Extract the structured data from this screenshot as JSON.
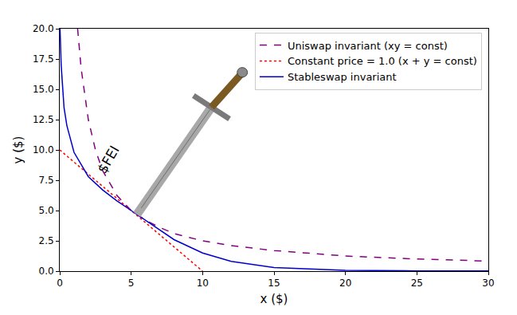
{
  "chart_data": {
    "type": "line",
    "x_label": "x ($)",
    "y_label": "y ($)",
    "xlim": [
      0,
      30
    ],
    "ylim": [
      0,
      20
    ],
    "xticks": [
      0,
      5,
      10,
      15,
      20,
      25,
      30
    ],
    "yticks": [
      {
        "value": 0,
        "label": "0.0"
      },
      {
        "value": 2.5,
        "label": "2.5"
      },
      {
        "value": 5,
        "label": "5.0"
      },
      {
        "value": 7.5,
        "label": "7.5"
      },
      {
        "value": 10,
        "label": "10.0"
      },
      {
        "value": 12.5,
        "label": "12.5"
      },
      {
        "value": 15,
        "label": "15.0"
      },
      {
        "value": 17.5,
        "label": "17.5"
      },
      {
        "value": 20,
        "label": "20.0"
      }
    ],
    "grid": false,
    "legend": "upper right",
    "series": [
      {
        "name": "Uniswap invariant (xy = const)",
        "color": "#800080",
        "line_style": "dashed",
        "x": [
          1.25,
          1.5,
          2,
          2.5,
          3,
          4,
          5,
          6,
          7,
          8,
          10,
          12,
          15,
          20,
          25,
          30
        ],
        "values": [
          20,
          16.7,
          12.5,
          10,
          8.3,
          6.25,
          5,
          4.2,
          3.6,
          3.1,
          2.5,
          2.1,
          1.7,
          1.25,
          1.0,
          0.83
        ]
      },
      {
        "name": "Constant price = 1.0 (x + y = const)",
        "color": "#ff0000",
        "line_style": "dotted",
        "x": [
          0,
          10
        ],
        "values": [
          10,
          0
        ]
      },
      {
        "name": "Stableswap invariant",
        "color": "#0000cd",
        "line_style": "solid",
        "x": [
          0.02,
          0.1,
          0.3,
          0.5,
          1,
          2,
          3,
          4,
          5,
          6,
          7,
          8,
          10,
          12,
          15,
          20,
          25,
          30
        ],
        "values": [
          20,
          17,
          13.5,
          12,
          9.8,
          7.8,
          6.7,
          5.8,
          5,
          4.2,
          3.4,
          2.6,
          1.5,
          0.8,
          0.3,
          0.07,
          0.02,
          0.01
        ]
      }
    ],
    "annotations": [
      {
        "text": "$FEI",
        "x": 3.4,
        "y": 9.2
      }
    ]
  }
}
